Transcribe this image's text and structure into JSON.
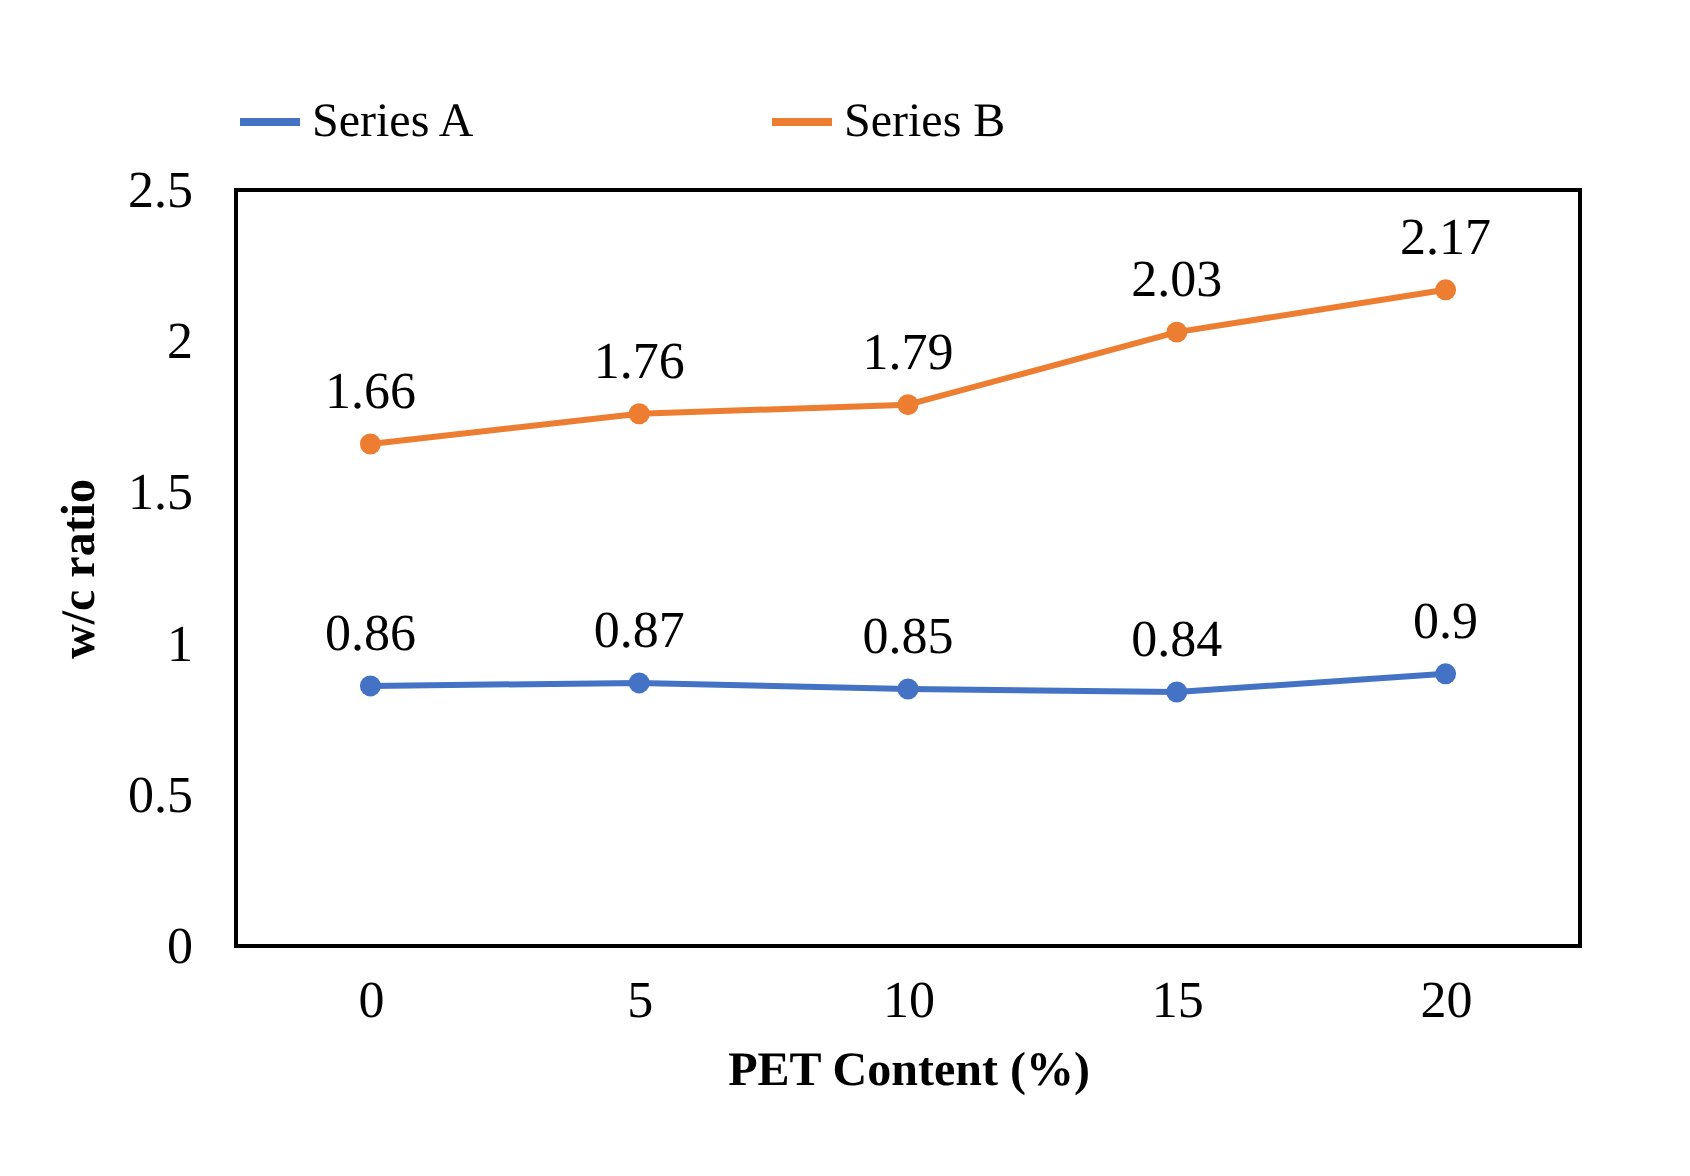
{
  "chart_data": {
    "type": "line",
    "xlabel": "PET Content (%)",
    "ylabel": "w/c ratio",
    "categories": [
      "0",
      "5",
      "10",
      "15",
      "20"
    ],
    "series": [
      {
        "name": "Series A",
        "color": "#4472c4",
        "values": [
          0.86,
          0.87,
          0.85,
          0.84,
          0.9
        ]
      },
      {
        "name": "Series B",
        "color": "#ed7d31",
        "values": [
          1.66,
          1.76,
          1.79,
          2.03,
          2.17
        ]
      }
    ],
    "ylim": [
      0,
      2.5
    ],
    "yticks": [
      0,
      0.5,
      1,
      1.5,
      2,
      2.5
    ],
    "grid": false,
    "legend": "top",
    "marker": "circle",
    "data_labels": true
  }
}
